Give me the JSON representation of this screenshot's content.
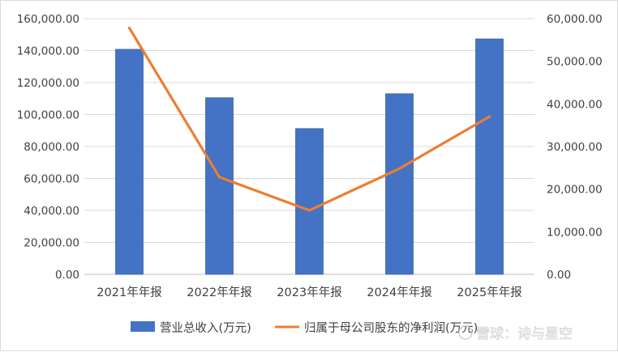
{
  "chart_data": {
    "type": "bar",
    "categories": [
      "2021年年报",
      "2022年年报",
      "2023年年报",
      "2024年年报",
      "2025年年报"
    ],
    "series": [
      {
        "name": "营业总收入(万元)",
        "type": "bar",
        "axis": "left",
        "color": "#4472C4",
        "values": [
          140800,
          110500,
          91200,
          113000,
          147300
        ]
      },
      {
        "name": "归属于母公司股东的净利润(万元)",
        "type": "line",
        "axis": "right",
        "color": "#ED7D31",
        "values": [
          57800,
          22800,
          15000,
          24800,
          37000
        ]
      }
    ],
    "y_left": {
      "lim": [
        0,
        160000
      ],
      "ticks": [
        "0.00",
        "20,000.00",
        "40,000.00",
        "60,000.00",
        "80,000.00",
        "100,000.00",
        "120,000.00",
        "140,000.00",
        "160,000.00"
      ]
    },
    "y_right": {
      "lim": [
        0,
        60000
      ],
      "ticks": [
        "0.00",
        "10,000.00",
        "20,000.00",
        "30,000.00",
        "40,000.00",
        "50,000.00",
        "60,000.00"
      ]
    },
    "grid": true,
    "legend_position": "bottom"
  },
  "watermark": {
    "text": "雪球：诗与星空"
  }
}
